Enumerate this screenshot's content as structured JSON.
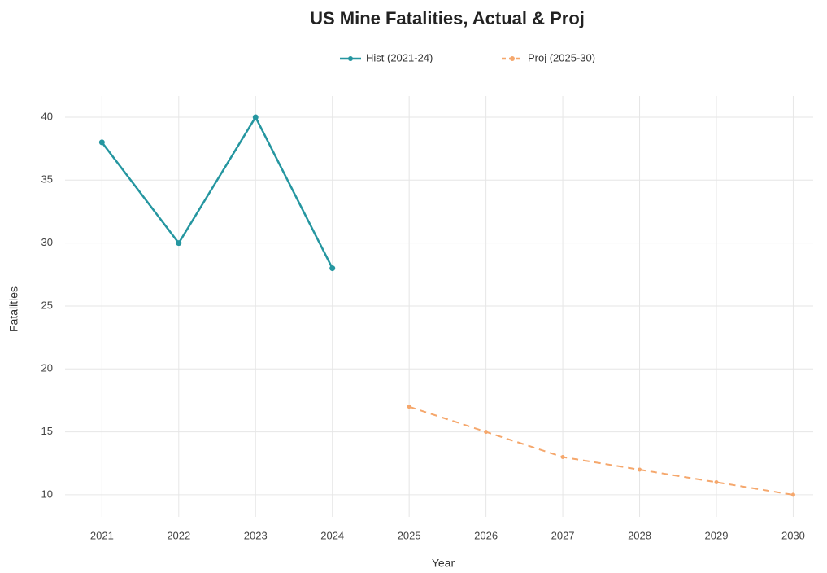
{
  "chart_data": {
    "type": "line",
    "title": "US Mine Fatalities, Actual & Proj",
    "x_label": "Year",
    "y_label": "Fatalities",
    "x": [
      2021,
      2022,
      2023,
      2024,
      2025,
      2026,
      2027,
      2028,
      2029,
      2030
    ],
    "series": [
      {
        "name": "Hist (2021-24)",
        "color": "#2596a0",
        "line_style": "solid",
        "values": [
          38,
          30,
          40,
          28,
          null,
          null,
          null,
          null,
          null,
          null
        ]
      },
      {
        "name": "Proj (2025-30)",
        "color": "#f5a76c",
        "line_style": "dashed",
        "values": [
          null,
          null,
          null,
          null,
          17,
          15,
          13,
          12,
          11,
          10
        ]
      }
    ],
    "xlim": [
      2020.52,
      2030.26
    ],
    "xticks": [
      2021,
      2022,
      2023,
      2024,
      2025,
      2026,
      2027,
      2028,
      2029,
      2030
    ],
    "ylim": [
      8.25,
      41.68
    ],
    "yticks": [
      10,
      15,
      20,
      25,
      30,
      35,
      40
    ],
    "grid": true,
    "legend": "top"
  }
}
